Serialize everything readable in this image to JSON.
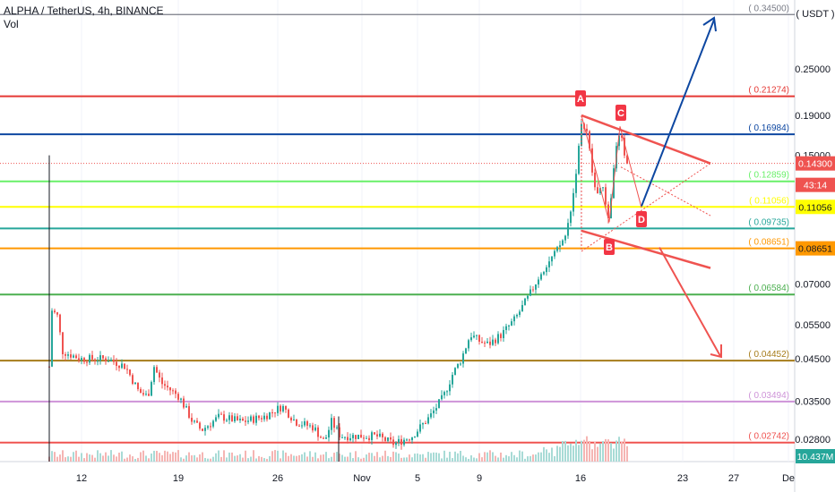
{
  "chart_data": {
    "type": "candlestick",
    "title": "ALPHA / TetherUS, 4h, BINANCE",
    "subtitle": "Vol",
    "price_axis_unit": "USDT",
    "y_scale": "log",
    "ylim": [
      0.0245,
      0.376
    ],
    "x_tick_labels": [
      "12",
      "19",
      "26",
      "Nov",
      "5",
      "9",
      "16",
      "23",
      "27",
      "De"
    ],
    "price_ticks": [
      "0.25000",
      "0.19000",
      "0.15000",
      "0.07000",
      "0.05500",
      "0.04500",
      "0.03500",
      "0.02800"
    ],
    "horizontal_levels": [
      {
        "value": 0.345,
        "label": "0.34500",
        "color": "#787b86"
      },
      {
        "value": 0.21274,
        "label": "0.21274",
        "color": "#e53935"
      },
      {
        "value": 0.16984,
        "label": "0.16984",
        "color": "#0d47a1"
      },
      {
        "value": 0.12859,
        "label": "0.12859",
        "color": "#69f069"
      },
      {
        "value": 0.11056,
        "label": "0.11056",
        "color": "#ffff00"
      },
      {
        "value": 0.09735,
        "label": "0.09735",
        "color": "#26a69a"
      },
      {
        "value": 0.08651,
        "label": "0.08651",
        "color": "#ff9800"
      },
      {
        "value": 0.06584,
        "label": "0.06584",
        "color": "#4caf50"
      },
      {
        "value": 0.04452,
        "label": "0.04452",
        "color": "#a67c1a"
      },
      {
        "value": 0.03494,
        "label": "0.03494",
        "color": "#ce93d8"
      },
      {
        "value": 0.02742,
        "label": "0.02742",
        "color": "#ef5350"
      }
    ],
    "last_price": {
      "label": "0.14300",
      "color": "#ef5350"
    },
    "countdown": "43:14",
    "volume_label": "10.437M",
    "pattern_points": [
      "A",
      "B",
      "C",
      "D"
    ],
    "colors": {
      "up": "#26a69a",
      "down": "#ef5350",
      "projection_up": "#0d47a1",
      "projection_down": "#ef5350"
    }
  }
}
